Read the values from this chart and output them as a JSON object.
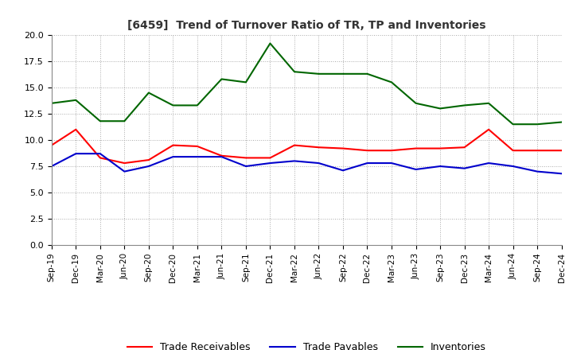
{
  "title": "[6459]  Trend of Turnover Ratio of TR, TP and Inventories",
  "x_labels": [
    "Sep-19",
    "Dec-19",
    "Mar-20",
    "Jun-20",
    "Sep-20",
    "Dec-20",
    "Mar-21",
    "Jun-21",
    "Sep-21",
    "Dec-21",
    "Mar-22",
    "Jun-22",
    "Sep-22",
    "Dec-22",
    "Mar-23",
    "Jun-23",
    "Sep-23",
    "Dec-23",
    "Mar-24",
    "Jun-24",
    "Sep-24",
    "Dec-24"
  ],
  "trade_receivables": [
    9.5,
    11.0,
    8.3,
    7.8,
    8.1,
    9.5,
    9.4,
    8.5,
    8.3,
    8.3,
    9.5,
    9.3,
    9.2,
    9.0,
    9.0,
    9.2,
    9.2,
    9.3,
    11.0,
    9.0,
    9.0,
    9.0
  ],
  "trade_payables": [
    7.5,
    8.7,
    8.7,
    7.0,
    7.5,
    8.4,
    8.4,
    8.4,
    7.5,
    7.8,
    8.0,
    7.8,
    7.1,
    7.8,
    7.8,
    7.2,
    7.5,
    7.3,
    7.8,
    7.5,
    7.0,
    6.8
  ],
  "inventories": [
    13.5,
    13.8,
    11.8,
    11.8,
    14.5,
    13.3,
    13.3,
    15.8,
    15.5,
    19.2,
    16.5,
    16.3,
    16.3,
    16.3,
    15.5,
    13.5,
    13.0,
    13.3,
    13.5,
    11.5,
    11.5,
    11.7
  ],
  "tr_color": "#ff0000",
  "tp_color": "#0000cc",
  "inv_color": "#006600",
  "ylim": [
    0.0,
    20.0
  ],
  "yticks": [
    0.0,
    2.5,
    5.0,
    7.5,
    10.0,
    12.5,
    15.0,
    17.5,
    20.0
  ],
  "ytick_labels": [
    "0.0",
    "2.5",
    "5.0",
    "7.5",
    "10.0",
    "12.5",
    "15.0",
    "17.5",
    "20.0"
  ],
  "legend_labels": [
    "Trade Receivables",
    "Trade Payables",
    "Inventories"
  ],
  "background_color": "#ffffff",
  "grid_color": "#aaaaaa"
}
